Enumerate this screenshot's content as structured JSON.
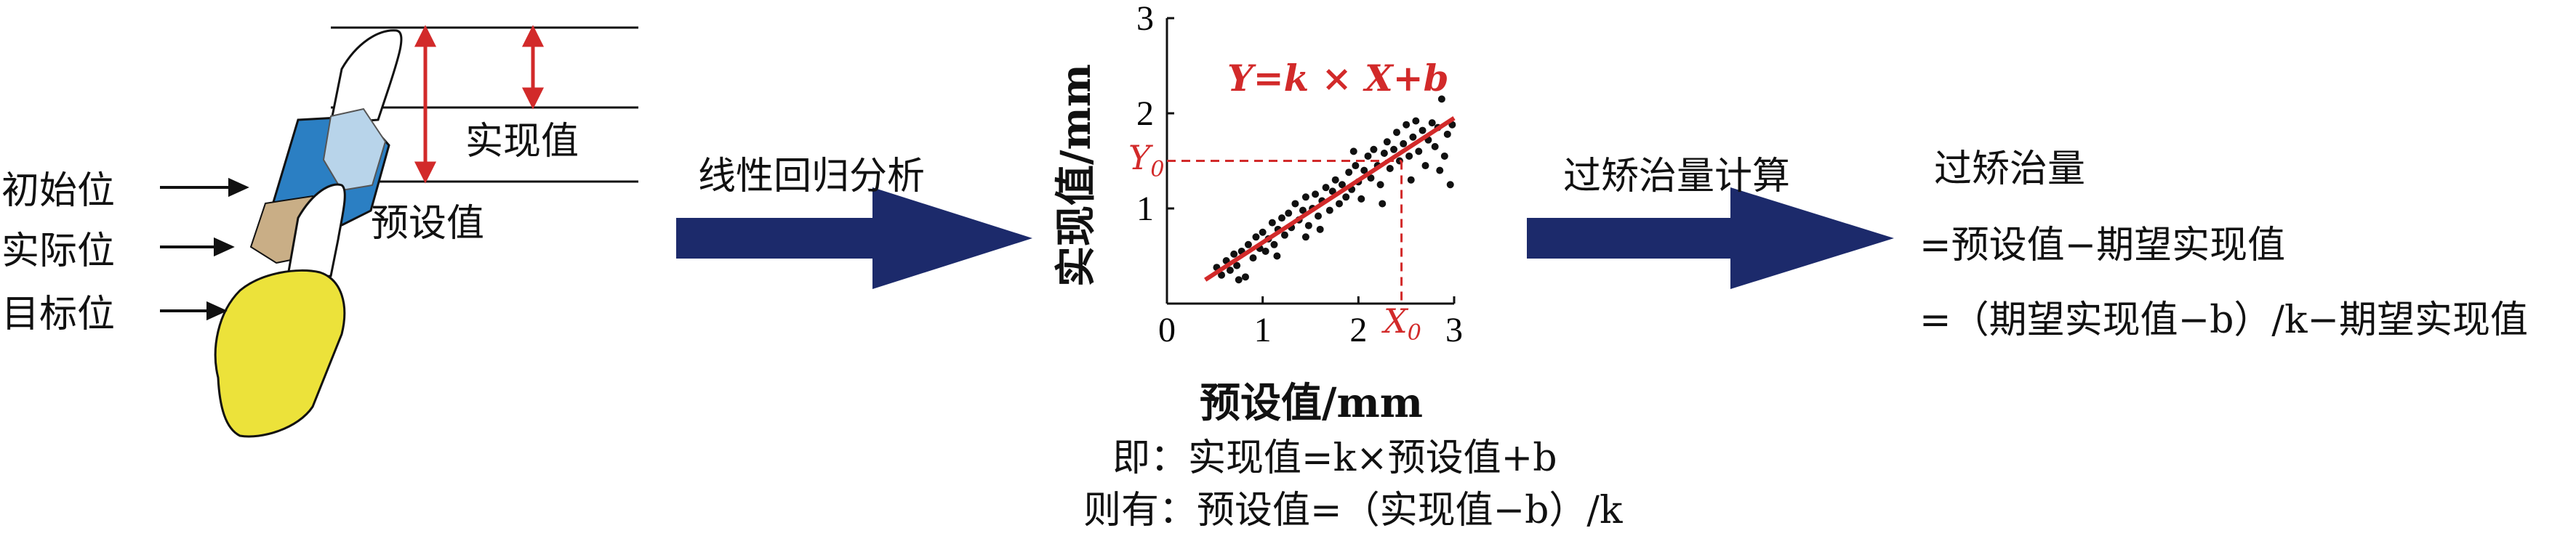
{
  "tooth": {
    "labels": {
      "initial": "初始位",
      "actual": "实际位",
      "target": "目标位",
      "realized": "实现值",
      "preset": "预设值"
    }
  },
  "flow": {
    "arrow1_label": "线性回归分析",
    "arrow2_label": "过矫治量计算"
  },
  "chart": {
    "eq": "Y=k × X+b",
    "y0": "Y",
    "x0": "X",
    "sub": "0",
    "xlabel": "预设值/mm",
    "ylabel": "实现值/mm"
  },
  "chart_data": {
    "type": "scatter",
    "xlabel": "预设值/mm",
    "ylabel": "实现值/mm",
    "xlim": [
      0,
      3
    ],
    "ylim": [
      0,
      3
    ],
    "xticks": [
      "0",
      "1",
      "2",
      "3"
    ],
    "yticks": [
      "1",
      "2",
      "3"
    ],
    "fit_line": {
      "x": [
        0.4,
        3.0
      ],
      "y": [
        0.25,
        1.95
      ]
    },
    "marker": {
      "x0": 2.45,
      "y0": 1.5
    },
    "points": [
      [
        0.52,
        0.38
      ],
      [
        0.57,
        0.3
      ],
      [
        0.62,
        0.45
      ],
      [
        0.66,
        0.35
      ],
      [
        0.7,
        0.52
      ],
      [
        0.73,
        0.4
      ],
      [
        0.78,
        0.55
      ],
      [
        0.82,
        0.28
      ],
      [
        0.85,
        0.62
      ],
      [
        0.9,
        0.48
      ],
      [
        0.93,
        0.7
      ],
      [
        0.97,
        0.58
      ],
      [
        1.0,
        0.75
      ],
      [
        1.03,
        0.55
      ],
      [
        1.06,
        0.68
      ],
      [
        1.1,
        0.85
      ],
      [
        1.12,
        0.62
      ],
      [
        1.16,
        0.78
      ],
      [
        1.2,
        0.9
      ],
      [
        1.23,
        0.72
      ],
      [
        1.27,
        0.95
      ],
      [
        1.3,
        0.8
      ],
      [
        1.34,
        1.05
      ],
      [
        1.38,
        0.88
      ],
      [
        1.42,
        0.98
      ],
      [
        1.45,
        1.12
      ],
      [
        1.48,
        0.82
      ],
      [
        1.52,
        1.0
      ],
      [
        1.55,
        1.15
      ],
      [
        1.58,
        0.92
      ],
      [
        1.62,
        1.08
      ],
      [
        1.66,
        1.22
      ],
      [
        1.7,
        0.98
      ],
      [
        1.73,
        1.18
      ],
      [
        1.76,
        1.3
      ],
      [
        1.8,
        1.05
      ],
      [
        1.83,
        1.25
      ],
      [
        1.87,
        1.12
      ],
      [
        1.9,
        1.38
      ],
      [
        1.93,
        1.2
      ],
      [
        1.97,
        1.45
      ],
      [
        2.0,
        1.28
      ],
      [
        2.03,
        1.1
      ],
      [
        2.06,
        1.4
      ],
      [
        2.1,
        1.55
      ],
      [
        2.13,
        1.32
      ],
      [
        2.16,
        1.62
      ],
      [
        2.2,
        1.45
      ],
      [
        2.23,
        1.25
      ],
      [
        2.27,
        1.58
      ],
      [
        2.3,
        1.7
      ],
      [
        2.33,
        1.42
      ],
      [
        2.37,
        1.62
      ],
      [
        2.4,
        1.8
      ],
      [
        2.43,
        1.5
      ],
      [
        2.47,
        1.68
      ],
      [
        2.5,
        1.88
      ],
      [
        2.53,
        1.55
      ],
      [
        2.57,
        1.75
      ],
      [
        2.6,
        1.92
      ],
      [
        2.63,
        1.6
      ],
      [
        2.67,
        1.82
      ],
      [
        2.7,
        1.45
      ],
      [
        2.73,
        1.72
      ],
      [
        2.77,
        1.9
      ],
      [
        2.8,
        1.65
      ],
      [
        2.83,
        1.85
      ],
      [
        2.87,
        2.15
      ],
      [
        2.9,
        1.55
      ],
      [
        2.93,
        1.78
      ],
      [
        2.96,
        1.25
      ],
      [
        2.98,
        1.88
      ],
      [
        1.15,
        0.5
      ],
      [
        1.6,
        0.78
      ],
      [
        2.25,
        1.05
      ],
      [
        0.75,
        0.25
      ],
      [
        1.95,
        1.6
      ],
      [
        2.55,
        1.3
      ],
      [
        1.45,
        0.7
      ],
      [
        2.85,
        1.4
      ]
    ]
  },
  "notes": {
    "line1": "即：实现值=k×预设值+b",
    "line2": "则有：预设值=（实现值−b）/k"
  },
  "result": {
    "title": "过矫治量",
    "line1": "=预设值−期望实现值",
    "line2": "=（期望实现值−b）/k−期望实现值"
  },
  "colors": {
    "arrow": "#1c2a6b",
    "red": "#d22a2a",
    "crown_blue": "#2b7fc3",
    "crown_light": "#b8d4ea",
    "crown_yellow": "#ece23a",
    "crown_tan": "#c9ae86"
  }
}
